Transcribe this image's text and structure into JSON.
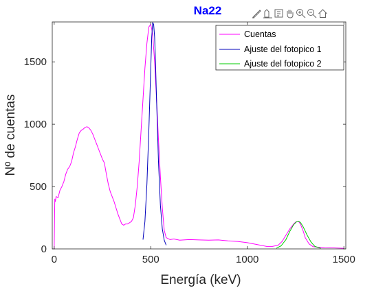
{
  "chart_data": {
    "type": "line",
    "title": "Na22",
    "xlabel": "Energía (keV)",
    "ylabel": "Nº de cuentas",
    "xlim": [
      -10,
      1510
    ],
    "ylim": [
      0,
      1820
    ],
    "xticks": [
      0,
      500,
      1000,
      1500
    ],
    "yticks": [
      0,
      500,
      1000,
      1500
    ],
    "grid": false,
    "legend_position": "top-right",
    "series": [
      {
        "name": "Cuentas",
        "color": "#ff00ff",
        "x": [
          0,
          3,
          6,
          10,
          20,
          30,
          40,
          50,
          60,
          70,
          80,
          90,
          100,
          110,
          120,
          130,
          140,
          150,
          160,
          170,
          180,
          190,
          200,
          210,
          220,
          230,
          240,
          250,
          260,
          270,
          280,
          290,
          300,
          310,
          320,
          330,
          340,
          350,
          360,
          370,
          380,
          390,
          400,
          410,
          420,
          430,
          440,
          450,
          460,
          470,
          480,
          490,
          500,
          510,
          520,
          530,
          540,
          550,
          560,
          570,
          580,
          600,
          620,
          650,
          700,
          750,
          800,
          850,
          900,
          950,
          1000,
          1050,
          1100,
          1130,
          1160,
          1180,
          1200,
          1220,
          1240,
          1250,
          1260,
          1265,
          1270,
          1275,
          1280,
          1290,
          1300,
          1320,
          1340,
          1360,
          1400,
          1450,
          1500
        ],
        "y": [
          0,
          400,
          380,
          420,
          410,
          470,
          500,
          540,
          600,
          640,
          660,
          700,
          770,
          820,
          880,
          930,
          950,
          960,
          975,
          980,
          970,
          950,
          920,
          880,
          840,
          800,
          760,
          720,
          690,
          600,
          520,
          460,
          420,
          380,
          330,
          280,
          240,
          200,
          190,
          200,
          200,
          210,
          220,
          250,
          350,
          500,
          700,
          950,
          1200,
          1450,
          1650,
          1780,
          1800,
          1720,
          1500,
          1200,
          880,
          580,
          330,
          150,
          90,
          75,
          80,
          70,
          75,
          72,
          70,
          72,
          65,
          60,
          50,
          35,
          20,
          20,
          30,
          60,
          110,
          160,
          200,
          215,
          220,
          222,
          210,
          200,
          180,
          140,
          90,
          40,
          18,
          15,
          10,
          8,
          5
        ]
      },
      {
        "name": "Ajuste del fotopico 1",
        "color": "#0000bb",
        "x": [
          460,
          470,
          480,
          490,
          500,
          505,
          510,
          515,
          520,
          525,
          530,
          540,
          550,
          560,
          570,
          580
        ],
        "y": [
          75,
          220,
          520,
          950,
          1450,
          1700,
          1815,
          1800,
          1700,
          1480,
          1200,
          700,
          350,
          160,
          70,
          30
        ]
      },
      {
        "name": "Ajuste del fotopico 2",
        "color": "#00cc00",
        "x": [
          1150,
          1175,
          1200,
          1220,
          1240,
          1255,
          1265,
          1275,
          1290,
          1310,
          1330,
          1350,
          1380
        ],
        "y": [
          5,
          25,
          75,
          140,
          195,
          218,
          222,
          212,
          175,
          110,
          55,
          20,
          5
        ]
      }
    ]
  },
  "toolbar": {
    "icons": [
      "brush-icon",
      "data-tips-icon",
      "rotate-icon",
      "pan-icon",
      "zoom-in-icon",
      "zoom-out-icon",
      "home-icon"
    ]
  }
}
